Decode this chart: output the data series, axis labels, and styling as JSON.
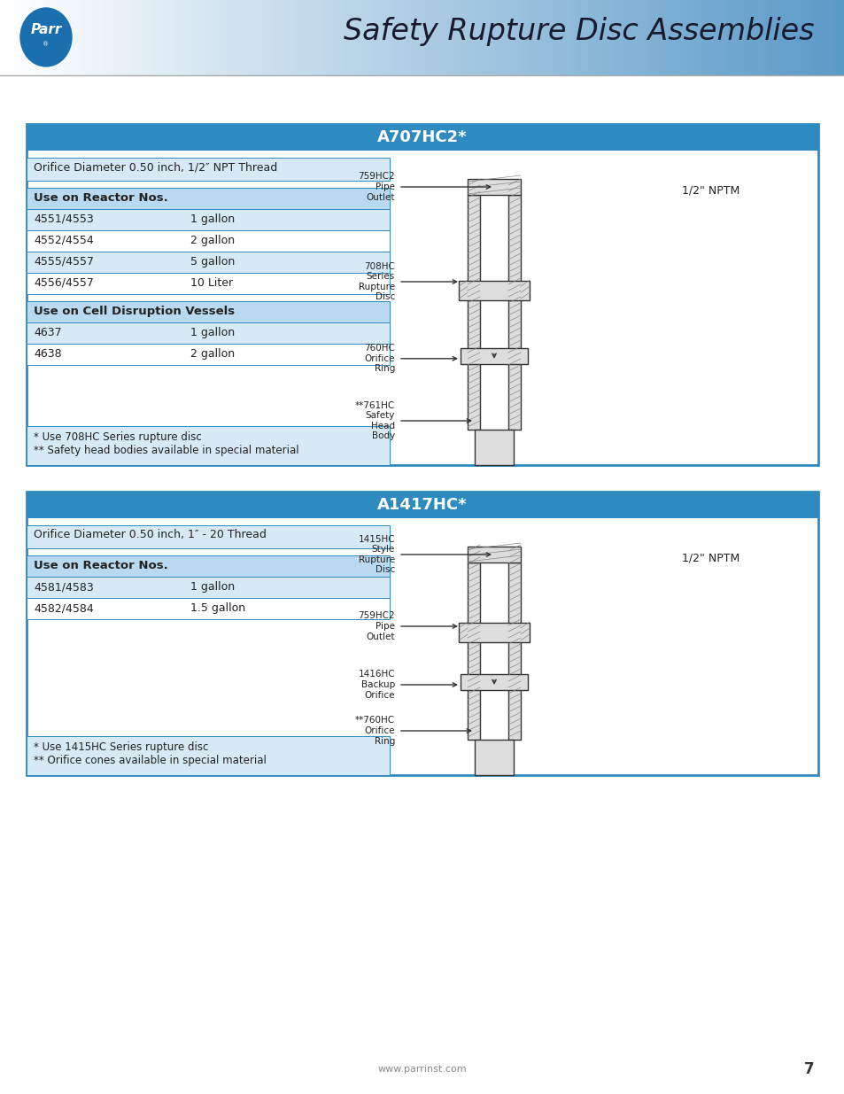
{
  "page_bg": "#f5f5f5",
  "header_title": "Safety Rupture Disc Assemblies",
  "header_title_color": "#1a1a2e",
  "table1_title": "A707HC2*",
  "table1_title_bg": "#2e8bbf",
  "table1_title_color": "#ffffff",
  "table1_border_color": "#2e8bbf",
  "table1_orifice": "Orifice Diameter 0.50 inch, 1/2″ NPT Thread",
  "table1_section1_header": "Use on Reactor Nos.",
  "table1_rows1": [
    [
      "4551/4553",
      "1 gallon"
    ],
    [
      "4552/4554",
      "2 gallon"
    ],
    [
      "4555/4557",
      "5 gallon"
    ],
    [
      "4556/4557",
      "10 Liter"
    ]
  ],
  "table1_section2_header": "Use on Cell Disruption Vessels",
  "table1_rows2": [
    [
      "4637",
      "1 gallon"
    ],
    [
      "4638",
      "2 gallon"
    ]
  ],
  "table1_footnote1": "* Use 708HC Series rupture disc",
  "table1_footnote2": "** Safety head bodies available in special material",
  "table1_labels": [
    "759HC2\nPipe\nOutlet",
    "708HC\nSeries\nRupture\nDisc",
    "760HC\nOrifice\nRing",
    "**761HC\nSafety\nHead\nBody"
  ],
  "table1_nptm": "1/2\" NPTM",
  "table2_title": "A1417HC*",
  "table2_title_bg": "#2e8bbf",
  "table2_title_color": "#ffffff",
  "table2_border_color": "#2e8bbf",
  "table2_orifice": "Orifice Diameter 0.50 inch, 1″ - 20 Thread",
  "table2_section1_header": "Use on Reactor Nos.",
  "table2_rows1": [
    [
      "4581/4583",
      "1 gallon"
    ],
    [
      "4582/4584",
      "1.5 gallon"
    ]
  ],
  "table2_footnote1": "* Use 1415HC Series rupture disc",
  "table2_footnote2": "** Orifice cones available in special material",
  "table2_labels": [
    "1415HC\nStyle\nRupture\nDisc",
    "759HC2\nPipe\nOutlet",
    "1416HC\nBackup\nOrifice",
    "**760HC\nOrifice\nRing"
  ],
  "table2_nptm": "1/2\" NPTM",
  "footer_text": "www.parrinst.com",
  "footer_page": "7",
  "row_alt_color": "#d6e9f5",
  "row_white": "#ffffff",
  "section_header_color": "#b8d9ef",
  "font_color": "#222222",
  "border_color": "#2e8bbf"
}
